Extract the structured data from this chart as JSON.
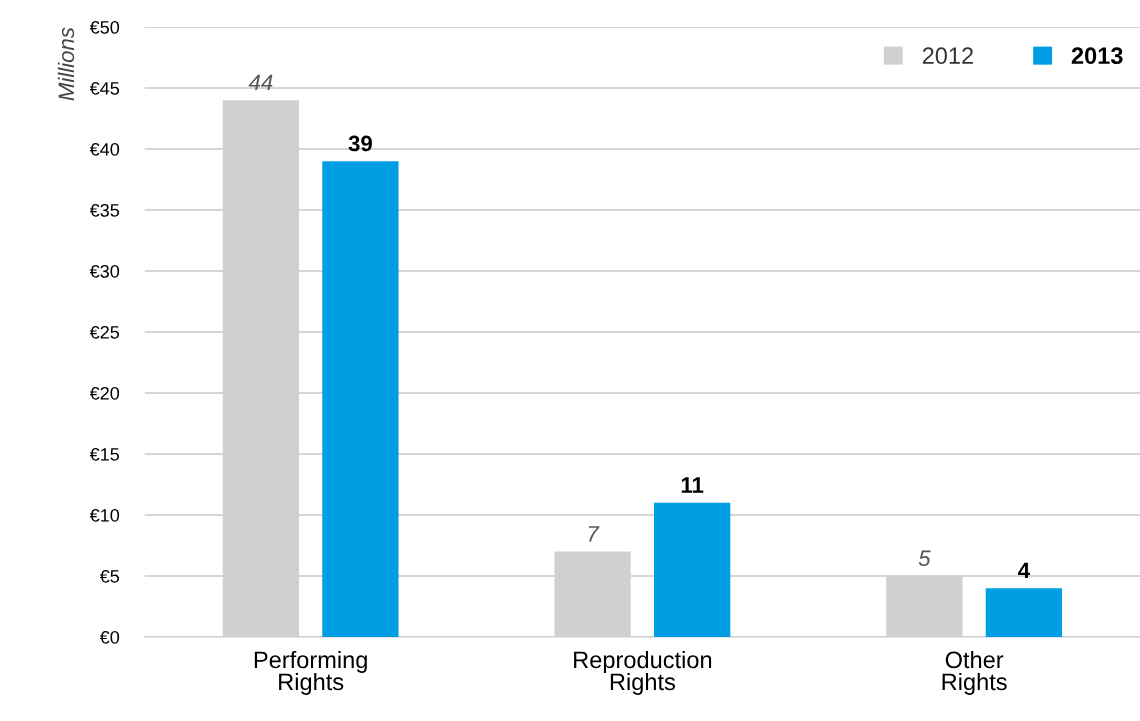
{
  "chart_data": {
    "type": "bar",
    "ylabel": "Millions",
    "categories": [
      "Performing\nRights",
      "Reproduction\nRights",
      "Other\nRights"
    ],
    "series": [
      {
        "name": "2012",
        "color": "#d0d0d0",
        "values": [
          44,
          7,
          5
        ]
      },
      {
        "name": "2013",
        "color": "#009fe3",
        "values": [
          39,
          11,
          4
        ]
      }
    ],
    "ylim": [
      0,
      50
    ],
    "yticks": [
      {
        "value": 0,
        "label": "€0"
      },
      {
        "value": 5,
        "label": "€5"
      },
      {
        "value": 10,
        "label": "€10"
      },
      {
        "value": 15,
        "label": "€15"
      },
      {
        "value": 20,
        "label": "€20"
      },
      {
        "value": 25,
        "label": "€25"
      },
      {
        "value": 30,
        "label": "€30"
      },
      {
        "value": 35,
        "label": "€35"
      },
      {
        "value": 40,
        "label": "€40"
      },
      {
        "value": 45,
        "label": "€45"
      },
      {
        "value": 50,
        "label": "€50"
      }
    ],
    "grid": "y",
    "legend": "top right",
    "data_labels": true
  }
}
